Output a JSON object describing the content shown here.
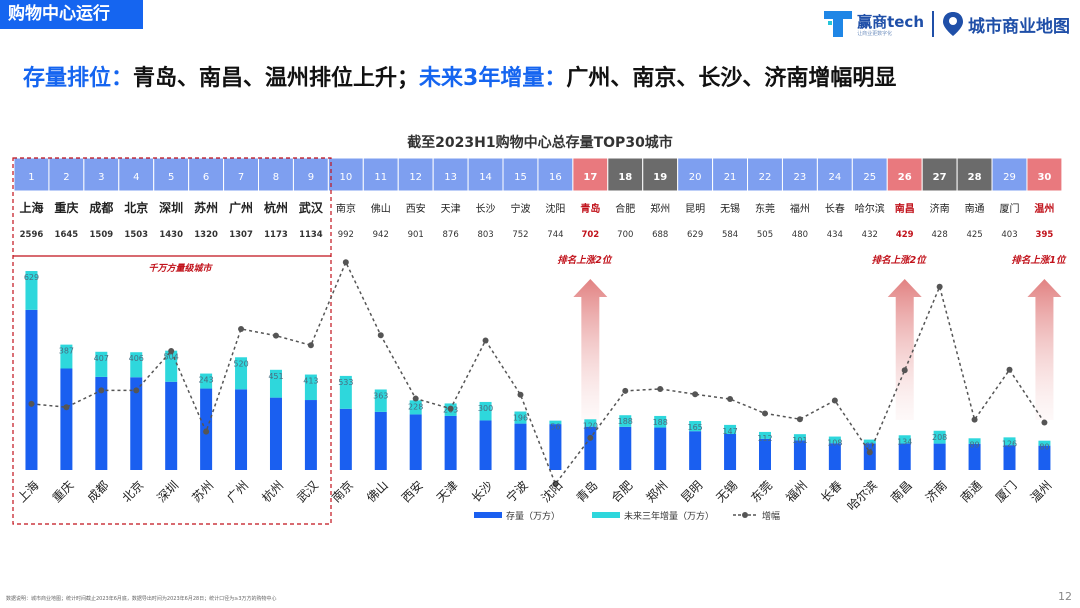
{
  "header": {
    "section_tag": "购物中心运行",
    "brand_name": "赢商tech",
    "brand_slogan": "让商业更数字化",
    "brand_map": "城市商业地图"
  },
  "headline": {
    "part1_label": "存量排位：",
    "part1_text": "青岛、南昌、温州排位上升；",
    "part2_label": "未来3年增量：",
    "part2_text": "广州、南京、长沙、济南增幅明显"
  },
  "footer": {
    "note": "数据说明：城市商业地图；统计时间截止2023年6月底，数据导出时间为2023年6月28日；统计口径为≥3万方的购物中心",
    "page": "12"
  },
  "colors": {
    "stock": "#1a5ff0",
    "increment": "#2ed7dc",
    "line": "#555555",
    "rank_normal": "#7e9ff0",
    "rank_highlight": "#e9797e",
    "rank_gray": "#6b6b6b",
    "red_text": "#c1121b"
  },
  "chart_data": {
    "type": "bar",
    "title": "截至2023H1购物中心总存量TOP30城市",
    "categories": [
      "上海",
      "重庆",
      "成都",
      "北京",
      "深圳",
      "苏州",
      "广州",
      "杭州",
      "武汉",
      "南京",
      "佛山",
      "西安",
      "天津",
      "长沙",
      "宁波",
      "沈阳",
      "青岛",
      "合肥",
      "郑州",
      "昆明",
      "无锡",
      "东莞",
      "福州",
      "长春",
      "哈尔滨",
      "南昌",
      "济南",
      "南通",
      "厦门",
      "温州"
    ],
    "ranks": [
      "1",
      "2",
      "3",
      "4",
      "5",
      "6",
      "7",
      "8",
      "9",
      "10",
      "11",
      "12",
      "13",
      "14",
      "15",
      "16",
      "17",
      "18",
      "19",
      "20",
      "21",
      "22",
      "23",
      "24",
      "25",
      "26",
      "27",
      "28",
      "29",
      "30"
    ],
    "rank_styles": [
      "n",
      "n",
      "n",
      "n",
      "n",
      "n",
      "n",
      "n",
      "n",
      "n",
      "n",
      "n",
      "n",
      "n",
      "n",
      "n",
      "h",
      "g",
      "g",
      "n",
      "n",
      "n",
      "n",
      "n",
      "n",
      "h",
      "g",
      "g",
      "n",
      "h"
    ],
    "highlight_cities": [
      "青岛",
      "南昌",
      "温州"
    ],
    "series": [
      {
        "name": "存量（万方）",
        "values": [
          2596,
          1645,
          1509,
          1503,
          1430,
          1320,
          1307,
          1173,
          1134,
          992,
          942,
          901,
          876,
          803,
          752,
          744,
          702,
          700,
          688,
          629,
          584,
          505,
          480,
          434,
          432,
          429,
          428,
          425,
          403,
          395
        ]
      },
      {
        "name": "未来三年增量（万方）",
        "values": [
          629,
          387,
          407,
          406,
          504,
          243,
          520,
          451,
          413,
          533,
          363,
          228,
          203,
          300,
          196,
          56,
          120,
          188,
          188,
          165,
          147,
          112,
          101,
          108,
          61,
          134,
          208,
          89,
          126,
          80
        ]
      },
      {
        "name": "增幅",
        "values": [
          0.242,
          0.235,
          0.27,
          0.27,
          0.352,
          0.184,
          0.398,
          0.384,
          0.364,
          0.537,
          0.385,
          0.253,
          0.232,
          0.374,
          0.261,
          0.075,
          0.171,
          0.269,
          0.273,
          0.262,
          0.252,
          0.222,
          0.21,
          0.249,
          0.141,
          0.312,
          0.486,
          0.209,
          0.313,
          0.203
        ]
      }
    ],
    "group_label": "千万方量级城市",
    "annotations": [
      {
        "city": "青岛",
        "text": "排名上涨2位"
      },
      {
        "city": "南昌",
        "text": "排名上涨2位"
      },
      {
        "city": "温州",
        "text": "排名上涨1位"
      }
    ],
    "legend": {
      "position": "bottom",
      "items": [
        "存量（万方）",
        "未来三年增量（万方）",
        "增幅"
      ]
    }
  }
}
